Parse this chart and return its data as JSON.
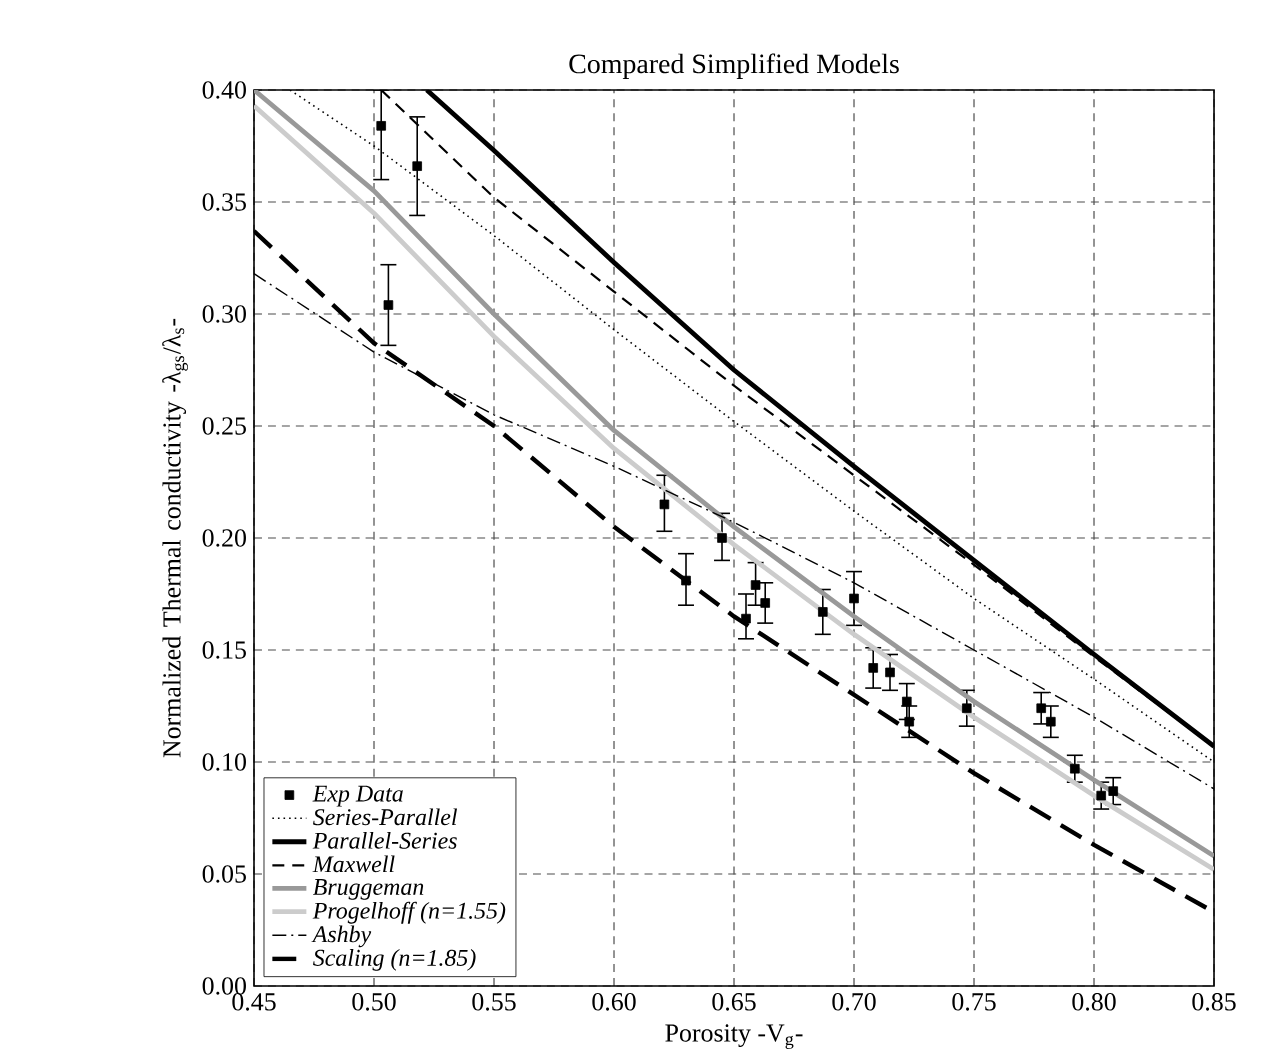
{
  "chart_data": {
    "type": "line",
    "title": "Compared Simplified Models",
    "xlabel": "Porosity -V$_{g}$-",
    "ylabel": "Normalized Thermal conductivity -λ$_{gs}$/λ$_{s}$-",
    "xlim": [
      0.45,
      0.85
    ],
    "ylim": [
      0,
      0.4
    ],
    "xticks": [
      {
        "value": 0.45,
        "label": "0.45"
      },
      {
        "value": 0.5,
        "label": "0.50"
      },
      {
        "value": 0.55,
        "label": "0.55"
      },
      {
        "value": 0.6,
        "label": "0.60"
      },
      {
        "value": 0.65,
        "label": "0.65"
      },
      {
        "value": 0.7,
        "label": "0.70"
      },
      {
        "value": 0.75,
        "label": "0.75"
      },
      {
        "value": 0.8,
        "label": "0.80"
      },
      {
        "value": 0.85,
        "label": "0.85"
      }
    ],
    "yticks": [
      {
        "value": 0,
        "label": "0.00"
      },
      {
        "value": 0.05,
        "label": "0.05"
      },
      {
        "value": 0.1,
        "label": "0.10"
      },
      {
        "value": 0.15,
        "label": "0.15"
      },
      {
        "value": 0.2,
        "label": "0.20"
      },
      {
        "value": 0.25,
        "label": "0.25"
      },
      {
        "value": 0.3,
        "label": "0.30"
      },
      {
        "value": 0.35,
        "label": "0.35"
      },
      {
        "value": 0.4,
        "label": "0.40"
      }
    ],
    "grid": true,
    "legend": "bottom left",
    "series": [
      {
        "name": "Exp Data",
        "type": "scatter",
        "marker": "square",
        "color": "#000000",
        "x": [
          0.503,
          0.518,
          0.506,
          0.621,
          0.63,
          0.645,
          0.655,
          0.659,
          0.663,
          0.687,
          0.7,
          0.708,
          0.715,
          0.722,
          0.723,
          0.747,
          0.778,
          0.782,
          0.792,
          0.803,
          0.808
        ],
        "values": [
          0.384,
          0.366,
          0.304,
          0.215,
          0.181,
          0.2,
          0.164,
          0.179,
          0.171,
          0.167,
          0.173,
          0.142,
          0.14,
          0.127,
          0.118,
          0.124,
          0.124,
          0.118,
          0.097,
          0.085,
          0.087
        ],
        "errors": [
          [
            0.36,
            0.4
          ],
          [
            0.344,
            0.388
          ],
          [
            0.286,
            0.322
          ],
          [
            0.203,
            0.228
          ],
          [
            0.17,
            0.193
          ],
          [
            0.19,
            0.211
          ],
          [
            0.155,
            0.175
          ],
          [
            0.17,
            0.189
          ],
          [
            0.162,
            0.18
          ],
          [
            0.157,
            0.177
          ],
          [
            0.161,
            0.185
          ],
          [
            0.133,
            0.151
          ],
          [
            0.132,
            0.148
          ],
          [
            0.119,
            0.135
          ],
          [
            0.111,
            0.125
          ],
          [
            0.116,
            0.132
          ],
          [
            0.117,
            0.131
          ],
          [
            0.111,
            0.125
          ],
          [
            0.091,
            0.103
          ],
          [
            0.079,
            0.091
          ],
          [
            0.081,
            0.093
          ]
        ]
      },
      {
        "name": "Series-Parallel",
        "line_style": "dotted",
        "color": "#000000",
        "x": [
          0.465,
          0.5,
          0.55,
          0.6,
          0.65,
          0.7,
          0.75,
          0.8,
          0.85
        ],
        "values": [
          0.4,
          0.375,
          0.335,
          0.293,
          0.252,
          0.212,
          0.173,
          0.137,
          0.1
        ]
      },
      {
        "name": "Parallel-Series",
        "line_style": "solid",
        "color": "#000000",
        "x": [
          0.522,
          0.55,
          0.6,
          0.65,
          0.7,
          0.75,
          0.8,
          0.85
        ],
        "values": [
          0.4,
          0.373,
          0.323,
          0.275,
          0.232,
          0.19,
          0.148,
          0.107
        ]
      },
      {
        "name": "Maxwell",
        "line_style": "dashed",
        "color": "#000000",
        "x": [
          0.503,
          0.55,
          0.6,
          0.65,
          0.7,
          0.75,
          0.8,
          0.85
        ],
        "values": [
          0.4,
          0.352,
          0.31,
          0.268,
          0.228,
          0.188,
          0.147,
          0.107
        ]
      },
      {
        "name": "Bruggeman",
        "line_style": "solid",
        "color": "#999999",
        "x": [
          0.45,
          0.5,
          0.55,
          0.6,
          0.65,
          0.7,
          0.75,
          0.8,
          0.85
        ],
        "values": [
          0.4,
          0.355,
          0.3,
          0.248,
          0.205,
          0.165,
          0.127,
          0.092,
          0.058
        ]
      },
      {
        "name": "Progelhoff (n=1.55)",
        "line_style": "solid",
        "color": "#cccccc",
        "x": [
          0.45,
          0.5,
          0.55,
          0.6,
          0.65,
          0.7,
          0.75,
          0.8,
          0.85
        ],
        "values": [
          0.393,
          0.345,
          0.29,
          0.24,
          0.197,
          0.157,
          0.12,
          0.085,
          0.052
        ]
      },
      {
        "name": "Ashby",
        "line_style": "dashdot",
        "color": "#000000",
        "x": [
          0.45,
          0.5,
          0.55,
          0.6,
          0.65,
          0.7,
          0.75,
          0.8,
          0.85
        ],
        "values": [
          0.318,
          0.283,
          0.255,
          0.232,
          0.207,
          0.18,
          0.15,
          0.12,
          0.088
        ]
      },
      {
        "name": "Scaling (n=1.85)",
        "line_style": "longdash",
        "color": "#000000",
        "x": [
          0.45,
          0.5,
          0.55,
          0.6,
          0.65,
          0.7,
          0.75,
          0.8,
          0.85
        ],
        "values": [
          0.337,
          0.287,
          0.25,
          0.205,
          0.165,
          0.13,
          0.095,
          0.063,
          0.033
        ]
      }
    ]
  }
}
